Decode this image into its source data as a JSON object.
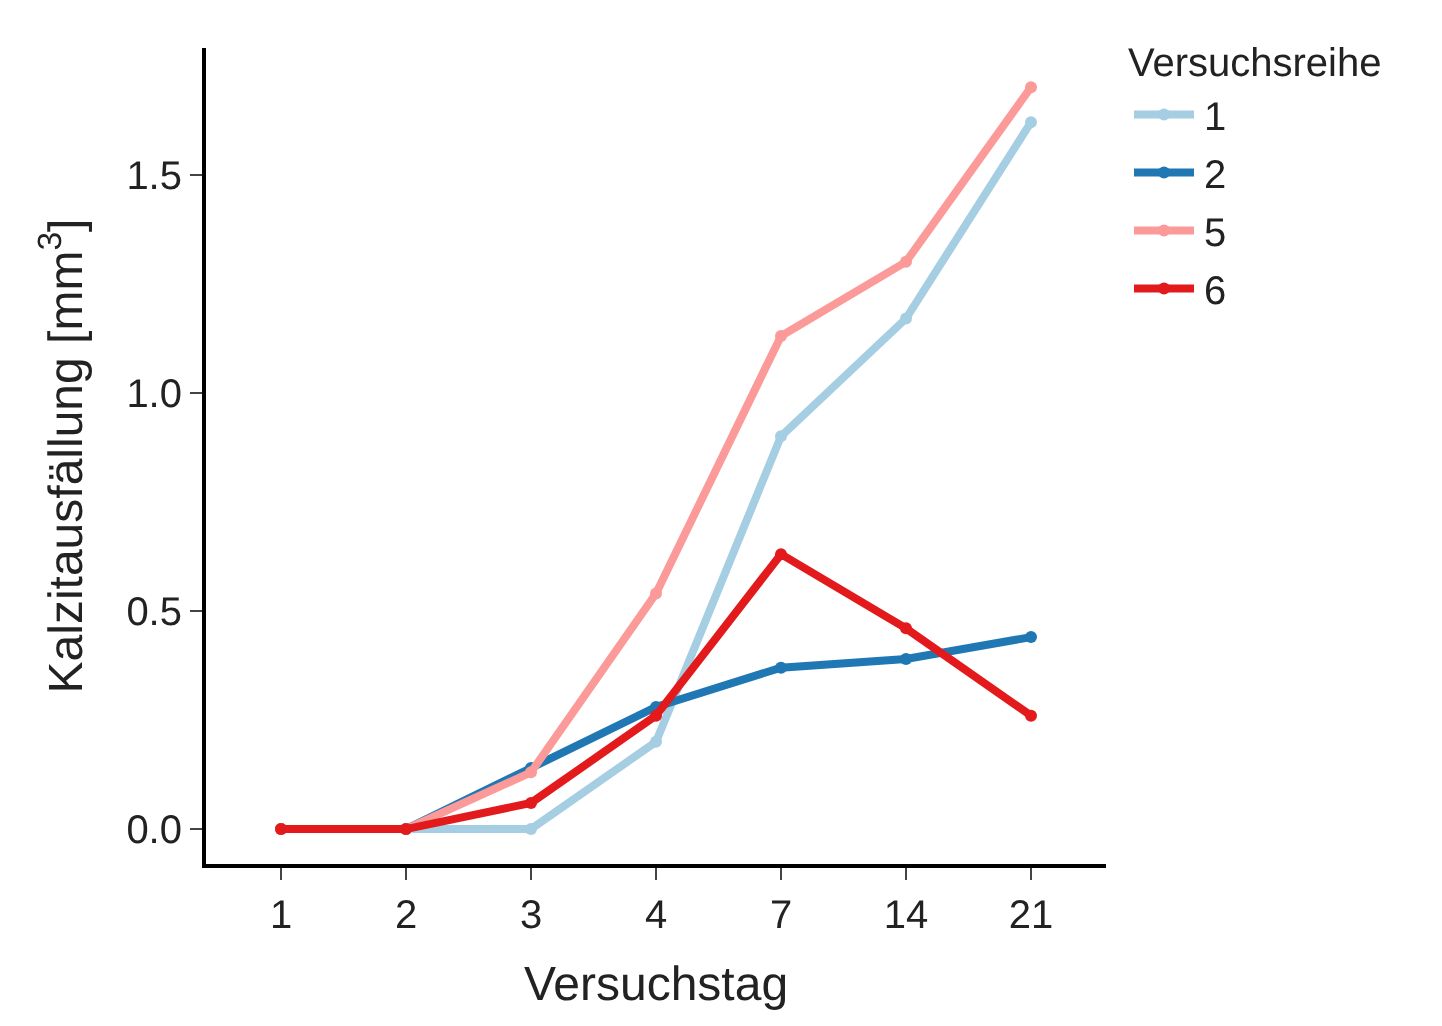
{
  "chart_data": {
    "type": "line",
    "xlabel": "Versuchstag",
    "ylabel": "Kalzitausfällung [mm$^{3}$]",
    "legend_title": "Versuchsreihe",
    "categories": [
      "1",
      "2",
      "3",
      "4",
      "7",
      "14",
      "21"
    ],
    "series": [
      {
        "name": "1",
        "color": "#a6cee3",
        "values": [
          0,
          0,
          0,
          0.2,
          0.9,
          1.17,
          1.62
        ]
      },
      {
        "name": "2",
        "color": "#1f78b4",
        "values": [
          0,
          0,
          0.14,
          0.28,
          0.37,
          0.39,
          0.44
        ]
      },
      {
        "name": "5",
        "color": "#fb9a99",
        "values": [
          0,
          0,
          0.13,
          0.54,
          1.13,
          1.3,
          1.7
        ]
      },
      {
        "name": "6",
        "color": "#e31a1c",
        "values": [
          0,
          0,
          0.06,
          0.26,
          0.63,
          0.46,
          0.26
        ]
      }
    ],
    "ylim": [
      -0.08,
      1.79
    ],
    "yticks": [
      {
        "value": 0,
        "label": "0.0"
      },
      0.5,
      {
        "value": 1,
        "label": "1.0"
      },
      1.5
    ],
    "legend": "top right",
    "marker": "circle",
    "line_style": "solid"
  }
}
